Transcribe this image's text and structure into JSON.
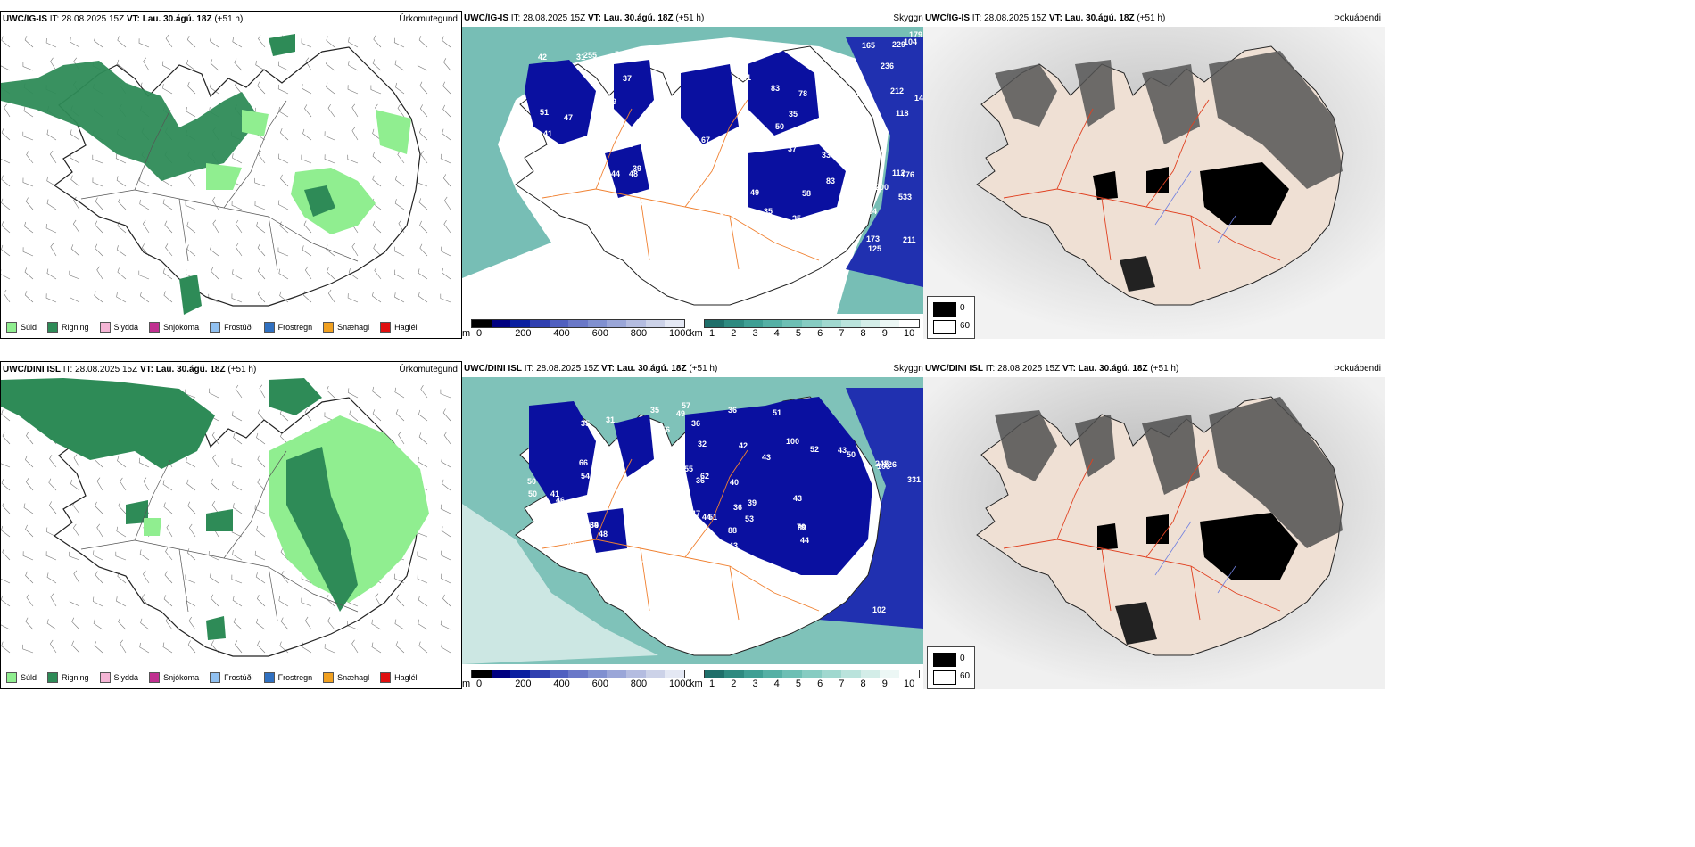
{
  "rows": [
    {
      "model": "UWC/IG-IS",
      "it_label": "IT:",
      "it": "28.08.2025 15Z",
      "vt_label": "VT:",
      "vt": "Lau. 30.ágú. 18Z",
      "lead": "(+51 h)",
      "cloud_numbers": [
        "50",
        "40",
        "31",
        "37",
        "49",
        "37",
        "55",
        "65",
        "48",
        "50",
        "46",
        "51",
        "42",
        "35",
        "34",
        "49",
        "67",
        "55",
        "48",
        "71",
        "60",
        "43",
        "41",
        "44",
        "58",
        "59",
        "64",
        "69",
        "78",
        "42",
        "39",
        "48",
        "37",
        "83",
        "83",
        "51",
        "47",
        "255",
        "36",
        "38",
        "41",
        "43",
        "33",
        "35",
        "94",
        "175",
        "86",
        "39",
        "53",
        "41",
        "37",
        "35",
        "112",
        "104",
        "140",
        "118",
        "125",
        "165",
        "164",
        "173",
        "229",
        "236",
        "169",
        "176",
        "211",
        "216",
        "179",
        "212",
        "533",
        "200",
        "619"
      ]
    },
    {
      "model": "UWC/DINI ISL",
      "it_label": "IT:",
      "it": "28.08.2025 15Z",
      "vt_label": "VT:",
      "vt": "Lau. 30.ágú. 18Z",
      "lead": "(+51 h)",
      "cloud_numbers": [
        "49",
        "51",
        "31",
        "100",
        "44",
        "48",
        "39",
        "64",
        "52",
        "43",
        "41",
        "57",
        "53",
        "36",
        "42",
        "35",
        "44",
        "50",
        "39",
        "44",
        "43",
        "49",
        "56",
        "62",
        "55",
        "45",
        "46",
        "36",
        "32",
        "39",
        "66",
        "48",
        "79",
        "47",
        "39",
        "43",
        "43",
        "40",
        "42",
        "43",
        "50",
        "36",
        "81",
        "100",
        "50",
        "54",
        "36",
        "55",
        "97",
        "88",
        "103",
        "102",
        "126",
        "331",
        "79",
        "51",
        "247",
        "70",
        "35"
      ]
    }
  ],
  "precip": {
    "title": "Úrkomutegund",
    "legend": [
      {
        "label": "Súld",
        "color": "#90ee90"
      },
      {
        "label": "Rigning",
        "color": "#2e8b57"
      },
      {
        "label": "Slydda",
        "color": "#f5b5d5"
      },
      {
        "label": "Snjókoma",
        "color": "#c03090"
      },
      {
        "label": "Frostúði",
        "color": "#90c0f0"
      },
      {
        "label": "Frostregn",
        "color": "#3070c0"
      },
      {
        "label": "Snæhagl",
        "color": "#f0a020"
      },
      {
        "label": "Haglél",
        "color": "#e01010"
      }
    ]
  },
  "cloud": {
    "title": "Skyggni",
    "bar1": {
      "unit": "m",
      "ticks": [
        "0",
        "200",
        "400",
        "600",
        "800",
        "1000"
      ],
      "colors": [
        "#000000",
        "#000080",
        "#0a1fa0",
        "#3040b0",
        "#5060c0",
        "#6a78c8",
        "#8090d0",
        "#9aa6d8",
        "#b4bce0",
        "#ccd2e8",
        "#e4e8f4"
      ]
    },
    "bar2": {
      "unit": "km",
      "ticks": [
        "1",
        "2",
        "3",
        "4",
        "5",
        "6",
        "7",
        "8",
        "9",
        "10"
      ],
      "colors": [
        "#1f6f6a",
        "#2e8a80",
        "#3f9f94",
        "#55b0a5",
        "#6dbfb4",
        "#86ccc2",
        "#a0d8cf",
        "#bae3dc",
        "#d3ede8",
        "#ecf7f5",
        "#ffffff"
      ]
    }
  },
  "fog": {
    "title": "Þokuábendi",
    "legend": [
      {
        "label": "0",
        "color": "#000000"
      },
      {
        "label": "60",
        "color": "#ffffff"
      }
    ]
  }
}
